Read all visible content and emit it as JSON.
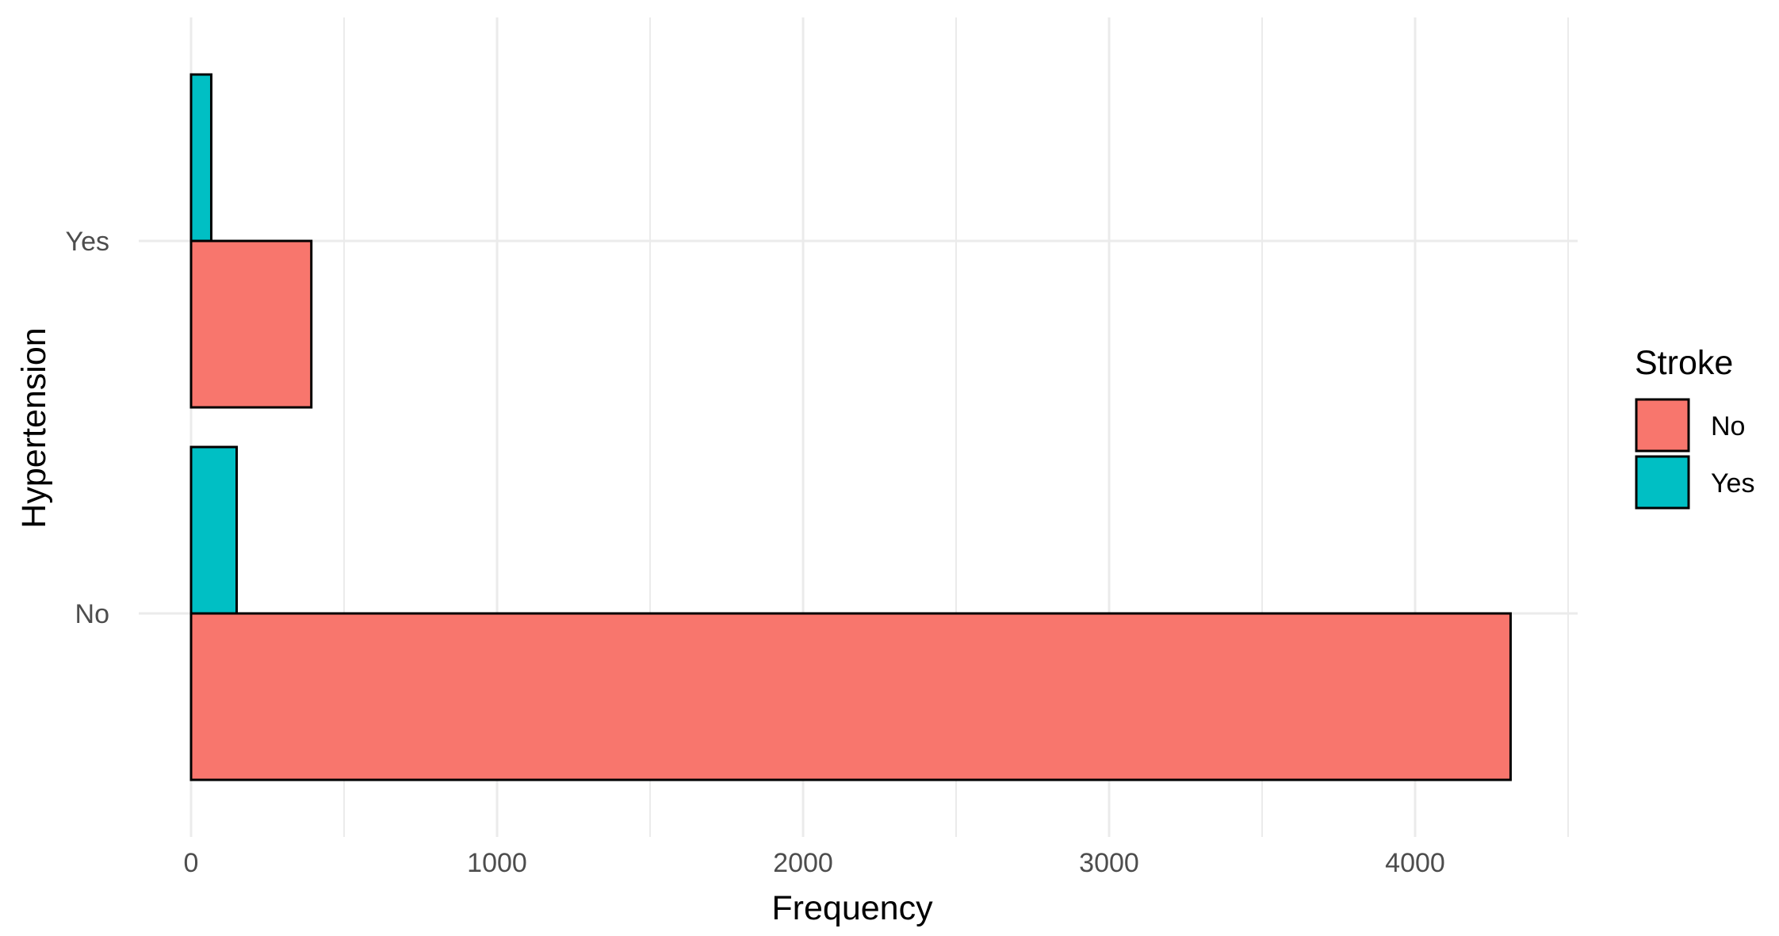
{
  "chart_data": {
    "type": "bar",
    "orientation": "horizontal",
    "categories": [
      "No",
      "Yes"
    ],
    "series": [
      {
        "name": "No",
        "values": [
          4312,
          393
        ],
        "color": "#F8766D"
      },
      {
        "name": "Yes",
        "values": [
          149,
          66
        ],
        "color": "#00BFC4"
      }
    ],
    "xlabel": "Frequency",
    "ylabel": "Hypertension",
    "xlim": [
      -200,
      4500
    ],
    "x_ticks": [
      "0",
      "1000",
      "2000",
      "3000",
      "4000"
    ],
    "x_tick_values": [
      0,
      1000,
      2000,
      3000,
      4000
    ],
    "x_minor_values": [
      500,
      1500,
      2500,
      3500,
      4500
    ],
    "grid": true,
    "legend": {
      "title": "Stroke",
      "position": "right",
      "entries": [
        "No",
        "Yes"
      ]
    }
  }
}
